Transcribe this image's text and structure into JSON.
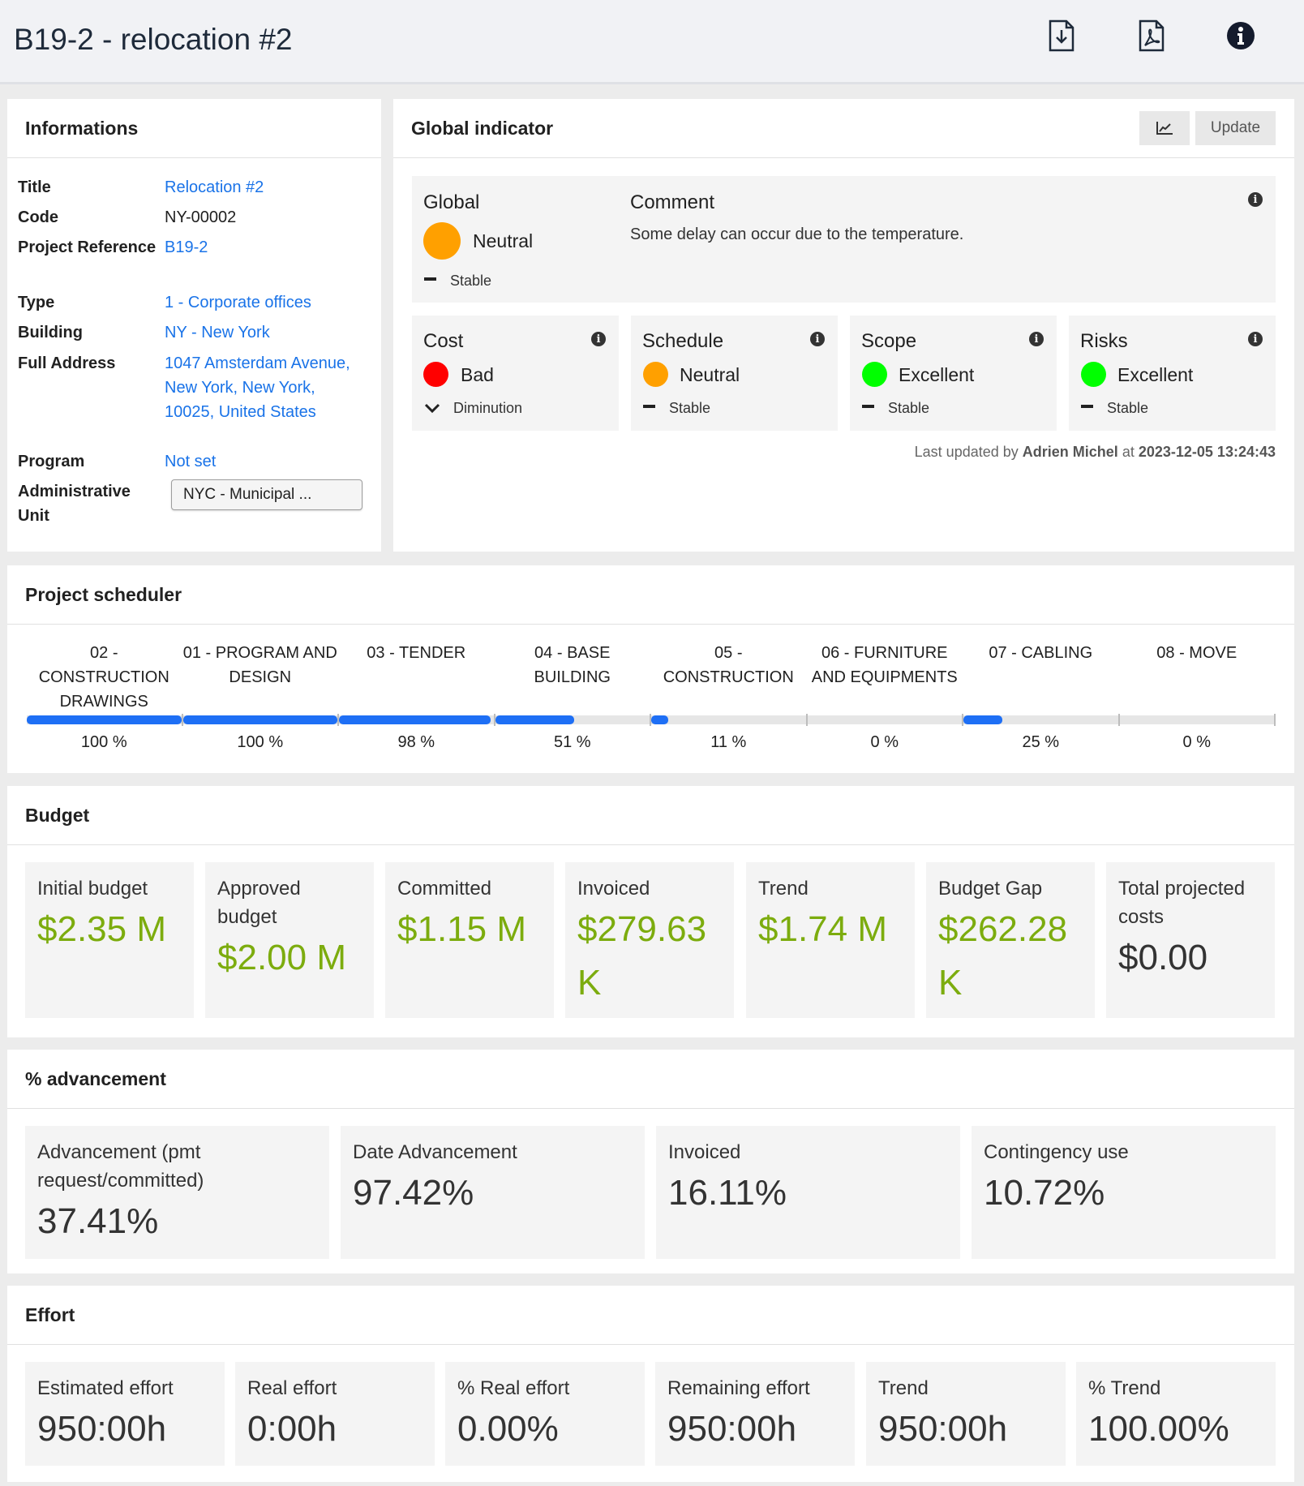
{
  "header": {
    "title": "B19-2 - relocation #2"
  },
  "informations": {
    "title": "Informations",
    "rows": [
      {
        "label": "Title",
        "value": "Relocation #2"
      },
      {
        "label": "Code",
        "value": "NY-00002"
      },
      {
        "label": "Project Reference",
        "value": "B19-2"
      },
      {
        "label": "Type",
        "value": "1 - Corporate offices"
      },
      {
        "label": "Building",
        "value": "NY - New York"
      },
      {
        "label": "Full Address",
        "value": "1047 Amsterdam Avenue, New York, New York, 10025, United States"
      },
      {
        "label": "Program",
        "value": "Not set"
      },
      {
        "label": "Administrative Unit",
        "value": "NYC - Municipal ..."
      }
    ]
  },
  "global_indicator": {
    "title": "Global indicator",
    "update_label": "Update",
    "global": {
      "title": "Global",
      "status": "Neutral",
      "trend": "Stable",
      "color": "#ffa000"
    },
    "comment": {
      "title": "Comment",
      "text": "Some delay can occur due to the temperature."
    },
    "indicators": [
      {
        "title": "Cost",
        "status": "Bad",
        "trend": "Diminution",
        "color": "#ff0000"
      },
      {
        "title": "Schedule",
        "status": "Neutral",
        "trend": "Stable",
        "color": "#ffa000"
      },
      {
        "title": "Scope",
        "status": "Excellent",
        "trend": "Stable",
        "color": "#00ff00"
      },
      {
        "title": "Risks",
        "status": "Excellent",
        "trend": "Stable",
        "color": "#00ff00"
      }
    ],
    "last_updated": {
      "prefix": "Last updated by",
      "user": "Adrien Michel",
      "at": "at",
      "date": "2023-12-05 13:24:43"
    }
  },
  "scheduler": {
    "title": "Project scheduler",
    "accent": "#1e6ff5",
    "phases": [
      {
        "label": "02 - CONSTRUCTION DRAWINGS",
        "progress": 100,
        "pct": "100 %"
      },
      {
        "label": "01 - PROGRAM AND DESIGN",
        "progress": 100,
        "pct": "100 %"
      },
      {
        "label": "03 - TENDER",
        "progress": 98,
        "pct": "98 %"
      },
      {
        "label": "04 - BASE BUILDING",
        "progress": 51,
        "pct": "51 %"
      },
      {
        "label": "05 - CONSTRUCTION",
        "progress": 11,
        "pct": "11 %"
      },
      {
        "label": "06 - FURNITURE AND EQUIPMENTS",
        "progress": 0,
        "pct": "0 %"
      },
      {
        "label": "07 - CABLING",
        "progress": 25,
        "pct": "25 %"
      },
      {
        "label": "08 - MOVE",
        "progress": 0,
        "pct": "0 %"
      }
    ]
  },
  "budget": {
    "title": "Budget",
    "tiles": [
      {
        "label": "Initial budget",
        "value": "$2.35 M",
        "tone": "green"
      },
      {
        "label": "Approved budget",
        "value": "$2.00 M",
        "tone": "green"
      },
      {
        "label": "Committed",
        "value": "$1.15 M",
        "tone": "green"
      },
      {
        "label": "Invoiced",
        "value": "$279.63 K",
        "tone": "green"
      },
      {
        "label": "Trend",
        "value": "$1.74 M",
        "tone": "green"
      },
      {
        "label": "Budget Gap",
        "value": "$262.28 K",
        "tone": "green"
      },
      {
        "label": "Total projected costs",
        "value": "$0.00",
        "tone": "dark"
      }
    ]
  },
  "advancement": {
    "title": "% advancement",
    "tiles": [
      {
        "label": "Advancement (pmt request/committed)",
        "value": "37.41%"
      },
      {
        "label": "Date Advancement",
        "value": "97.42%"
      },
      {
        "label": "Invoiced",
        "value": "16.11%"
      },
      {
        "label": "Contingency use",
        "value": "10.72%"
      }
    ]
  },
  "effort": {
    "title": "Effort",
    "tiles": [
      {
        "label": "Estimated effort",
        "value": "950:00h"
      },
      {
        "label": "Real effort",
        "value": "0:00h"
      },
      {
        "label": "% Real effort",
        "value": "0.00%"
      },
      {
        "label": "Remaining effort",
        "value": "950:00h"
      },
      {
        "label": "Trend",
        "value": "950:00h"
      },
      {
        "label": "% Trend",
        "value": "100.00%"
      }
    ]
  }
}
